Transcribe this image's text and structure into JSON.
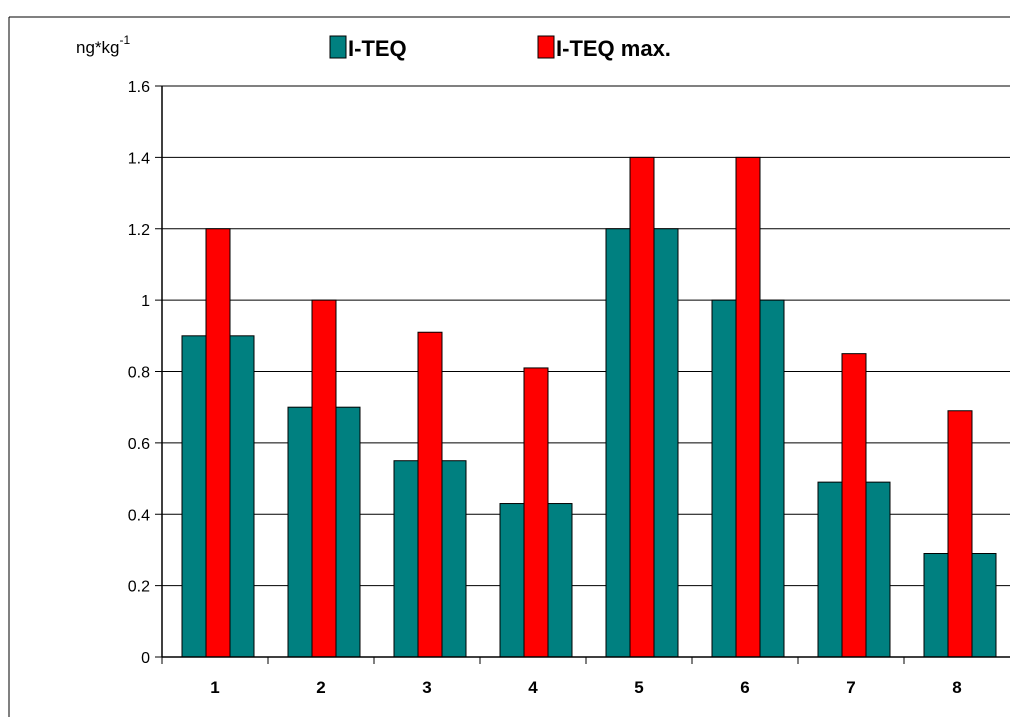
{
  "chart_data": {
    "type": "bar",
    "categories": [
      "1",
      "2",
      "3",
      "4",
      "5",
      "6",
      "7",
      "8"
    ],
    "series": [
      {
        "name": "I-TEQ",
        "values": [
          0.9,
          0.7,
          0.55,
          0.43,
          1.2,
          1.0,
          0.49,
          0.29
        ],
        "color": "#008080"
      },
      {
        "name": "I-TEQ max.",
        "values": [
          1.2,
          1.0,
          0.91,
          0.81,
          1.4,
          1.4,
          0.85,
          0.69
        ],
        "color": "#ff0000"
      }
    ],
    "yunit_base": "ng*kg",
    "yunit_exp": "-1",
    "ylim": [
      0,
      1.6
    ],
    "yticks": [
      0,
      0.2,
      0.4,
      0.6,
      0.8,
      1,
      1.2,
      1.4,
      1.6
    ],
    "ytick_labels": [
      "0",
      "0.2",
      "0.4",
      "0.6",
      "0.8",
      "1",
      "1.2",
      "1.4",
      "1.6"
    ],
    "grid": true,
    "legend_position": "top"
  }
}
